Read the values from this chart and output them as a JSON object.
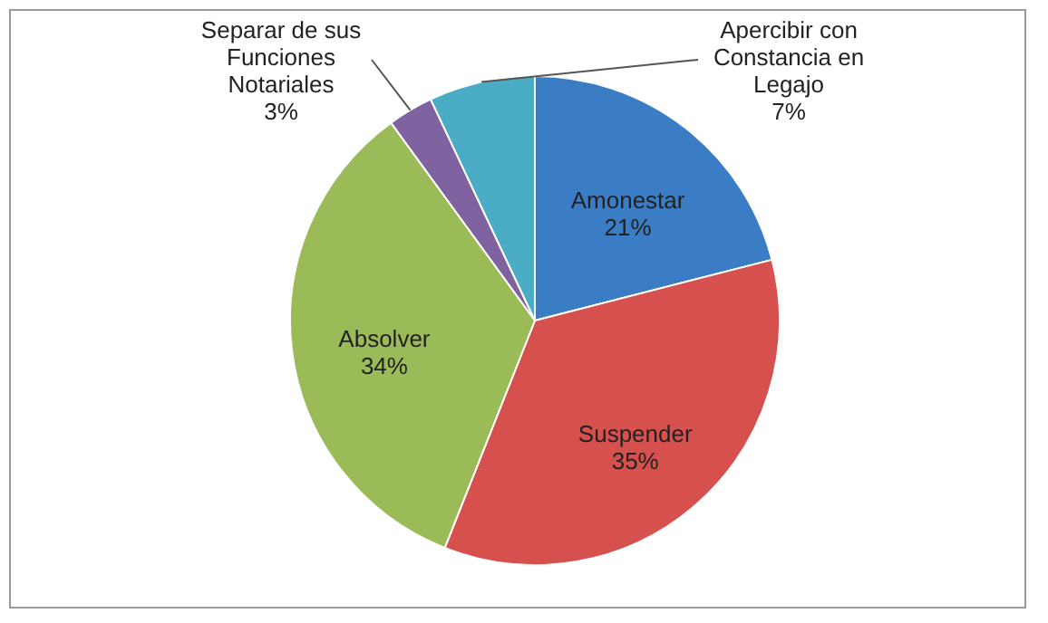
{
  "chart_data": {
    "type": "pie",
    "categories": [
      "Amonestar",
      "Suspender",
      "Absolver",
      "Separar de sus Funciones Notariales",
      "Apercibir con Constancia en Legajo"
    ],
    "values": [
      21,
      35,
      34,
      3,
      7
    ],
    "value_labels": [
      "21%",
      "35%",
      "34%",
      "3%",
      "7%"
    ],
    "colors": [
      "#3b7dc4",
      "#d6504d",
      "#9bbb59",
      "#7f63a1",
      "#4bacc6"
    ],
    "legend": false
  }
}
